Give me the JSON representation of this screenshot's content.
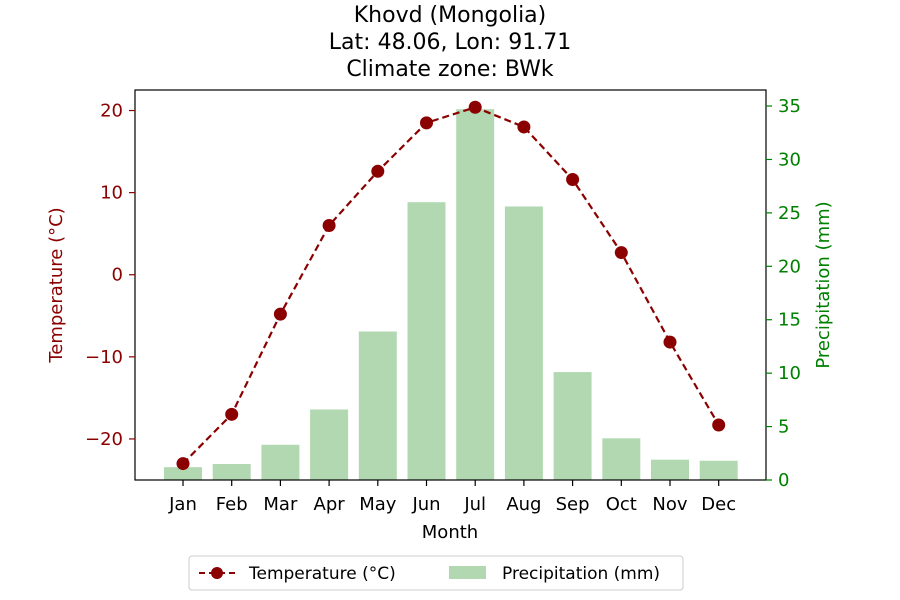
{
  "chart_data": {
    "type": "bar+line",
    "title": [
      "Khovd (Mongolia)",
      "Lat: 48.06, Lon: 91.71",
      "Climate zone: BWk"
    ],
    "xlabel": "Month",
    "categories": [
      "Jan",
      "Feb",
      "Mar",
      "Apr",
      "May",
      "Jun",
      "Jul",
      "Aug",
      "Sep",
      "Oct",
      "Nov",
      "Dec"
    ],
    "temperature": {
      "name": "Temperature (°C)",
      "axis": "left",
      "ylabel": "Temperature (°C)",
      "ylim": [
        -25,
        22.5
      ],
      "ticks": [
        -20,
        -10,
        0,
        10,
        20
      ],
      "values": [
        -23.0,
        -17.0,
        -4.8,
        6.0,
        12.6,
        18.5,
        20.4,
        18.0,
        11.6,
        2.7,
        -8.2,
        -18.3
      ],
      "color": "#8b0000",
      "style": "dashed line with circle markers"
    },
    "precipitation": {
      "name": "Precipitation (mm)",
      "axis": "right",
      "ylabel": "Precipitation (mm)",
      "ylim": [
        0,
        36.5
      ],
      "ticks": [
        0,
        5,
        10,
        15,
        20,
        25,
        30,
        35
      ],
      "values": [
        1.2,
        1.5,
        3.3,
        6.6,
        13.9,
        26.0,
        34.7,
        25.6,
        10.1,
        3.9,
        1.9,
        1.8
      ],
      "color": "#b2d8b2"
    },
    "legend_placement": "bottom-center",
    "grid": false
  },
  "colors": {
    "temp_axis": "#8b0000",
    "precip_axis": "#008000",
    "axis": "#000000"
  }
}
